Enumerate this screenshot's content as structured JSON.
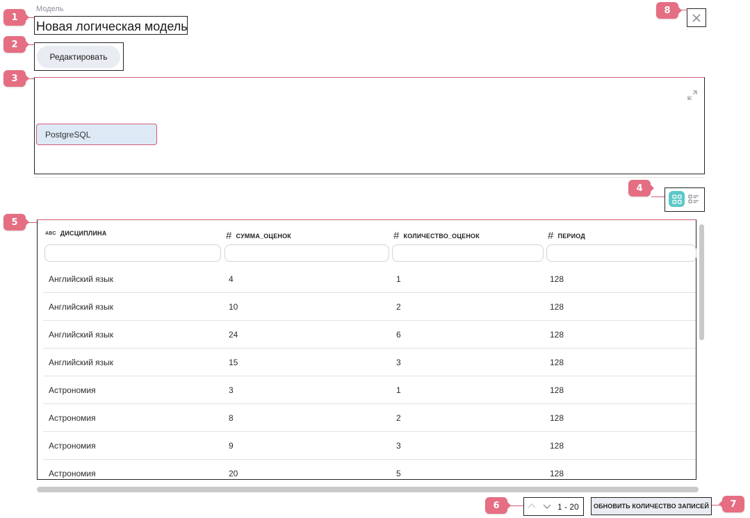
{
  "header": {
    "caption": "Модель",
    "title": "Новая логическая модель",
    "edit_label": "Редактировать"
  },
  "canvas": {
    "node_label": "PostgreSQL"
  },
  "view_toggle": {
    "active": "grid-view-icon",
    "inactive": "list-view-icon",
    "accent_color": "#5cc8c8"
  },
  "table": {
    "columns": [
      {
        "type_icon": "ABC",
        "name": "ДИСЦИПЛИНА"
      },
      {
        "type_icon": "#",
        "name": "СУММА_ОЦЕНОК"
      },
      {
        "type_icon": "#",
        "name": "КОЛИЧЕСТВО_ОЦЕНОК"
      },
      {
        "type_icon": "#",
        "name": "ПЕРИОД"
      }
    ],
    "rows": [
      [
        "Английский язык",
        "4",
        "1",
        "128"
      ],
      [
        "Английский язык",
        "10",
        "2",
        "128"
      ],
      [
        "Английский язык",
        "24",
        "6",
        "128"
      ],
      [
        "Английский язык",
        "15",
        "3",
        "128"
      ],
      [
        "Астрономия",
        "3",
        "1",
        "128"
      ],
      [
        "Астрономия",
        "8",
        "2",
        "128"
      ],
      [
        "Астрономия",
        "9",
        "3",
        "128"
      ],
      [
        "Астрономия",
        "20",
        "5",
        "128"
      ]
    ]
  },
  "pagination": {
    "range": "1 - 20",
    "refresh_label": "ОБНОВИТЬ КОЛИЧЕСТВО ЗАПИСЕЙ"
  },
  "annotations": [
    "1",
    "2",
    "3",
    "4",
    "5",
    "6",
    "7",
    "8"
  ],
  "colors": {
    "badge": "#e56e83",
    "highlight": "#d45a76",
    "node_fill": "#dde9f5"
  }
}
